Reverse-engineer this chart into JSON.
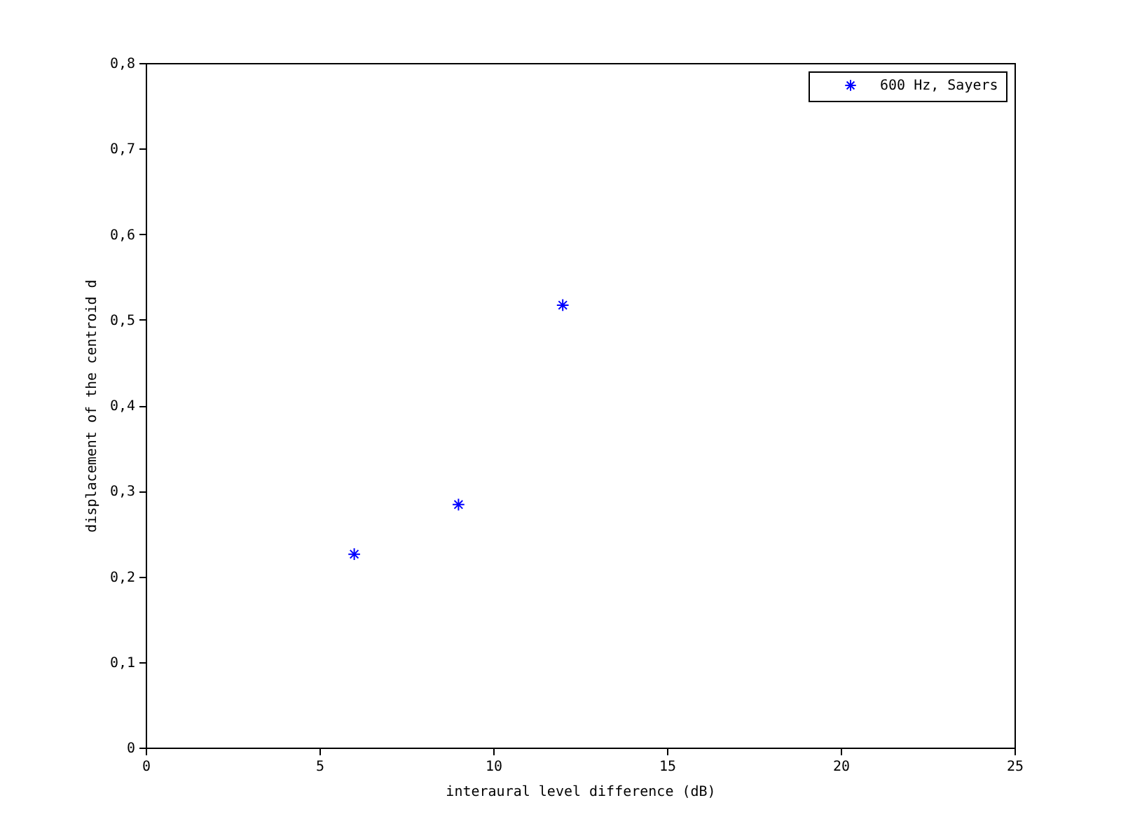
{
  "chart_data": {
    "type": "scatter",
    "xlabel": "interaural level difference (dB)",
    "ylabel": "displacement of the centroid d",
    "x": [
      6,
      9,
      12
    ],
    "series": [
      {
        "name": "600 Hz, Sayers",
        "color": "#0000ff",
        "values": [
          0.226,
          0.284,
          0.517
        ]
      }
    ],
    "xlim": [
      0,
      25
    ],
    "ylim": [
      0,
      0.8
    ],
    "xticks": [
      0,
      5,
      10,
      15,
      20,
      25
    ],
    "yticks": [
      0,
      {
        "value": 0.1,
        "label": "0,1"
      },
      {
        "value": 0.2,
        "label": "0,2"
      },
      {
        "value": 0.3,
        "label": "0,3"
      },
      {
        "value": 0.4,
        "label": "0,4"
      },
      {
        "value": 0.5,
        "label": "0,5"
      },
      {
        "value": 0.6,
        "label": "0,6"
      },
      {
        "value": 0.7,
        "label": "0,7"
      },
      {
        "value": 0.8,
        "label": "0,8"
      }
    ],
    "marker": "cross",
    "legend": "top right"
  }
}
